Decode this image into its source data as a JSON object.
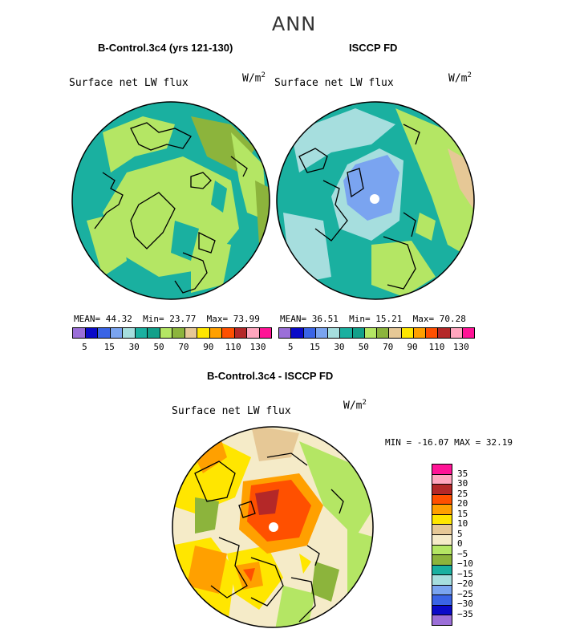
{
  "figure": {
    "title": "ANN",
    "units_base": "W/m",
    "units_exp": "2"
  },
  "panels": [
    {
      "title": "B-Control.3c4 (yrs 121-130)",
      "variable": "Surface net LW flux",
      "mean_label": "MEAN=",
      "mean": "44.32",
      "min_label": "Min=",
      "min": "23.77",
      "max_label": "Max=",
      "max": "73.99"
    },
    {
      "title": "ISCCP FD",
      "variable": "Surface net LW flux",
      "mean_label": "MEAN=",
      "mean": "36.51",
      "min_label": "Min=",
      "min": "15.21",
      "max_label": "Max=",
      "max": "70.28"
    }
  ],
  "diff_panel": {
    "title": "B-Control.3c4 - ISCCP FD",
    "variable": "Surface net LW flux",
    "minmax_text": "MIN = -16.07 MAX =  32.19"
  },
  "colorbar_abs": {
    "colors": [
      "#9b6fd8",
      "#0a0ac8",
      "#3a64e6",
      "#7aa4f0",
      "#a6dede",
      "#1ab0a0",
      "#12a08a",
      "#b4e664",
      "#8cb43c",
      "#e6c896",
      "#ffe600",
      "#ffa000",
      "#ff5000",
      "#b42828",
      "#ffa6be",
      "#ff1496"
    ],
    "ticks": [
      "5",
      "15",
      "30",
      "50",
      "70",
      "90",
      "110",
      "130"
    ]
  },
  "colorbar_diff": {
    "colors": [
      "#9b6fd8",
      "#0a0ac8",
      "#3a64e6",
      "#7aa4f0",
      "#a6dede",
      "#1ab0a0",
      "#8cb43c",
      "#b4e664",
      "#f5ebc8",
      "#e6c896",
      "#ffe600",
      "#ffa000",
      "#ff5000",
      "#b42828",
      "#ffa6be",
      "#ff1496"
    ],
    "ticks": [
      "35",
      "30",
      "25",
      "20",
      "15",
      "10",
      "5",
      "0",
      "−5",
      "−10",
      "−15",
      "−20",
      "−25",
      "−30",
      "−35"
    ]
  }
}
